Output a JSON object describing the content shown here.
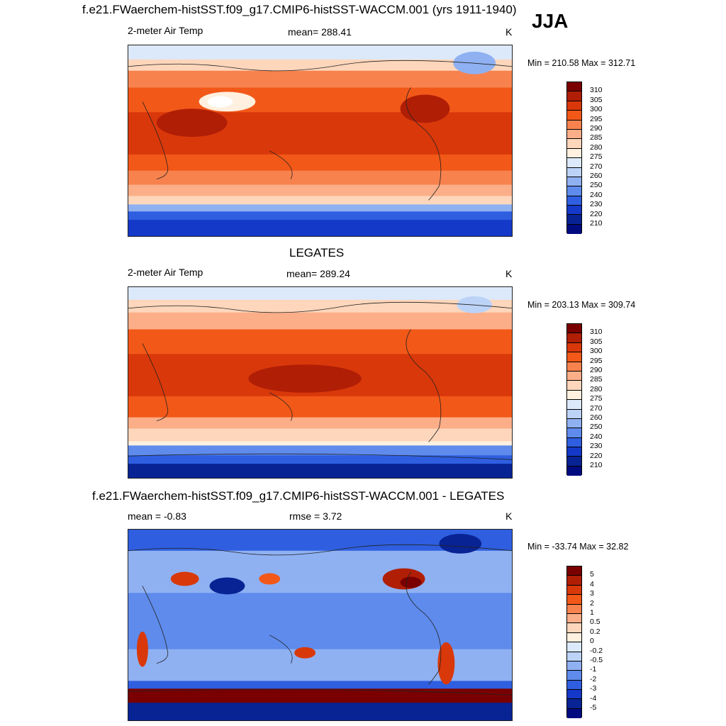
{
  "season": "JJA",
  "panels": [
    {
      "title": "f.e21.FWaerchem-histSST.f09_g17.CMIP6-histSST-WACCM.001 (yrs 1911-1940)",
      "left_label": "2-meter Air Temp",
      "center_label": "mean= 288.41",
      "right_label": "K",
      "minmax": "Min = 210.58 Max = 312.71",
      "colorbar": {
        "labels": [
          "310",
          "305",
          "300",
          "295",
          "290",
          "285",
          "280",
          "275",
          "270",
          "260",
          "250",
          "240",
          "230",
          "220",
          "210"
        ],
        "colors": [
          "#7a0000",
          "#b01e06",
          "#d9380a",
          "#f25818",
          "#f7824e",
          "#fbae88",
          "#fdd6bb",
          "#fff0df",
          "#dce9fb",
          "#bcd3f7",
          "#8fb1f2",
          "#5e8bec",
          "#2f5fe0",
          "#1438c8",
          "#082394",
          "#000b80"
        ]
      }
    },
    {
      "title": "LEGATES",
      "left_label": "2-meter Air Temp",
      "center_label": "mean= 289.24",
      "right_label": "K",
      "minmax": "Min = 203.13 Max = 309.74",
      "colorbar": {
        "labels": [
          "310",
          "305",
          "300",
          "295",
          "290",
          "285",
          "280",
          "275",
          "270",
          "260",
          "250",
          "240",
          "230",
          "220",
          "210"
        ],
        "colors": [
          "#7a0000",
          "#b01e06",
          "#d9380a",
          "#f25818",
          "#f7824e",
          "#fbae88",
          "#fdd6bb",
          "#fff0df",
          "#dce9fb",
          "#bcd3f7",
          "#8fb1f2",
          "#5e8bec",
          "#2f5fe0",
          "#1438c8",
          "#082394",
          "#000b80"
        ]
      }
    },
    {
      "title": "f.e21.FWaerchem-histSST.f09_g17.CMIP6-histSST-WACCM.001 - LEGATES",
      "left_label": "mean =  -0.83",
      "center_label": "rmse =   3.72",
      "right_label": "K",
      "minmax": "Min = -33.74 Max =  32.82",
      "colorbar": {
        "labels": [
          "5",
          "4",
          "3",
          "2",
          "1",
          "0.5",
          "0.2",
          "0",
          "-0.2",
          "-0.5",
          "-1",
          "-2",
          "-3",
          "-4",
          "-5"
        ],
        "colors": [
          "#7a0000",
          "#b01e06",
          "#d9380a",
          "#f25818",
          "#f7824e",
          "#fbae88",
          "#fdd6bb",
          "#fff0df",
          "#dce9fb",
          "#bcd3f7",
          "#8fb1f2",
          "#5e8bec",
          "#2f5fe0",
          "#1438c8",
          "#082394",
          "#000b80"
        ]
      }
    }
  ]
}
